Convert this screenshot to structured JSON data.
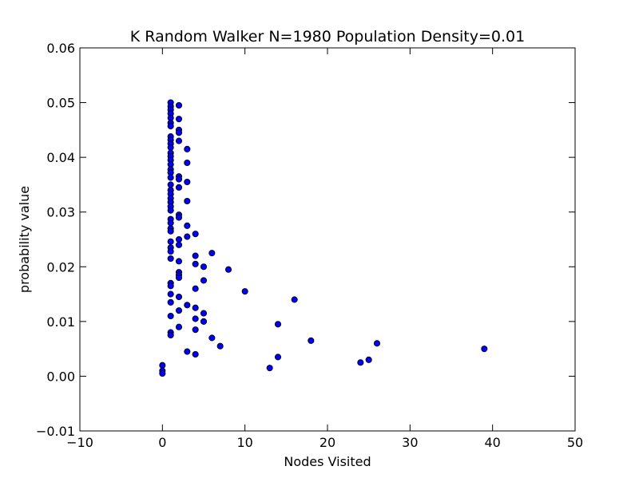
{
  "chart_data": {
    "type": "scatter",
    "title": "K Random Walker N=1980 Population Density=0.01",
    "xlabel": "Nodes Visited",
    "ylabel": "probability value",
    "xlim": [
      -10,
      50
    ],
    "ylim": [
      -0.01,
      0.06
    ],
    "x_ticks": [
      -10,
      0,
      10,
      20,
      30,
      40,
      50
    ],
    "x_tick_labels": [
      "−10",
      "0",
      "10",
      "20",
      "30",
      "40",
      "50"
    ],
    "y_ticks": [
      -0.01,
      0.0,
      0.01,
      0.02,
      0.03,
      0.04,
      0.05,
      0.06
    ],
    "y_tick_labels": [
      "−0.01",
      "0.00",
      "0.01",
      "0.02",
      "0.03",
      "0.04",
      "0.05",
      "0.06"
    ],
    "grid": false,
    "marker_color": "#0000ff",
    "marker_edge_color": "#000000",
    "points": [
      {
        "x": 0,
        "y": 0.002
      },
      {
        "x": 0,
        "y": 0.001
      },
      {
        "x": 0,
        "y": 0.0005
      },
      {
        "x": 1,
        "y": 0.05
      },
      {
        "x": 1,
        "y": 0.0493
      },
      {
        "x": 1,
        "y": 0.0487
      },
      {
        "x": 1,
        "y": 0.048
      },
      {
        "x": 1,
        "y": 0.0472
      },
      {
        "x": 1,
        "y": 0.0463
      },
      {
        "x": 1,
        "y": 0.0457
      },
      {
        "x": 1,
        "y": 0.0438
      },
      {
        "x": 1,
        "y": 0.0432
      },
      {
        "x": 1,
        "y": 0.0425
      },
      {
        "x": 1,
        "y": 0.0418
      },
      {
        "x": 1,
        "y": 0.0408
      },
      {
        "x": 1,
        "y": 0.0402
      },
      {
        "x": 1,
        "y": 0.0395
      },
      {
        "x": 1,
        "y": 0.0387
      },
      {
        "x": 1,
        "y": 0.0378
      },
      {
        "x": 1,
        "y": 0.0372
      },
      {
        "x": 1,
        "y": 0.0363
      },
      {
        "x": 1,
        "y": 0.035
      },
      {
        "x": 1,
        "y": 0.034
      },
      {
        "x": 1,
        "y": 0.0333
      },
      {
        "x": 1,
        "y": 0.0325
      },
      {
        "x": 1,
        "y": 0.0318
      },
      {
        "x": 1,
        "y": 0.031
      },
      {
        "x": 1,
        "y": 0.0303
      },
      {
        "x": 1,
        "y": 0.0287
      },
      {
        "x": 1,
        "y": 0.028
      },
      {
        "x": 1,
        "y": 0.027
      },
      {
        "x": 1,
        "y": 0.0265
      },
      {
        "x": 1,
        "y": 0.0246
      },
      {
        "x": 1,
        "y": 0.0235
      },
      {
        "x": 1,
        "y": 0.0228
      },
      {
        "x": 1,
        "y": 0.0215
      },
      {
        "x": 1,
        "y": 0.017
      },
      {
        "x": 1,
        "y": 0.0165
      },
      {
        "x": 1,
        "y": 0.015
      },
      {
        "x": 1,
        "y": 0.0135
      },
      {
        "x": 1,
        "y": 0.011
      },
      {
        "x": 1,
        "y": 0.008
      },
      {
        "x": 1,
        "y": 0.0075
      },
      {
        "x": 2,
        "y": 0.0495
      },
      {
        "x": 2,
        "y": 0.047
      },
      {
        "x": 2,
        "y": 0.045
      },
      {
        "x": 2,
        "y": 0.0445
      },
      {
        "x": 2,
        "y": 0.043
      },
      {
        "x": 2,
        "y": 0.0365
      },
      {
        "x": 2,
        "y": 0.036
      },
      {
        "x": 2,
        "y": 0.0345
      },
      {
        "x": 2,
        "y": 0.0295
      },
      {
        "x": 2,
        "y": 0.029
      },
      {
        "x": 2,
        "y": 0.025
      },
      {
        "x": 2,
        "y": 0.024
      },
      {
        "x": 2,
        "y": 0.021
      },
      {
        "x": 2,
        "y": 0.019
      },
      {
        "x": 2,
        "y": 0.0185
      },
      {
        "x": 2,
        "y": 0.018
      },
      {
        "x": 2,
        "y": 0.0145
      },
      {
        "x": 2,
        "y": 0.012
      },
      {
        "x": 2,
        "y": 0.009
      },
      {
        "x": 3,
        "y": 0.0415
      },
      {
        "x": 3,
        "y": 0.039
      },
      {
        "x": 3,
        "y": 0.0355
      },
      {
        "x": 3,
        "y": 0.032
      },
      {
        "x": 3,
        "y": 0.0275
      },
      {
        "x": 3,
        "y": 0.0255
      },
      {
        "x": 3,
        "y": 0.013
      },
      {
        "x": 3,
        "y": 0.0045
      },
      {
        "x": 4,
        "y": 0.026
      },
      {
        "x": 4,
        "y": 0.022
      },
      {
        "x": 4,
        "y": 0.0205
      },
      {
        "x": 4,
        "y": 0.016
      },
      {
        "x": 4,
        "y": 0.0125
      },
      {
        "x": 4,
        "y": 0.0105
      },
      {
        "x": 4,
        "y": 0.0085
      },
      {
        "x": 4,
        "y": 0.004
      },
      {
        "x": 5,
        "y": 0.02
      },
      {
        "x": 5,
        "y": 0.0175
      },
      {
        "x": 5,
        "y": 0.0115
      },
      {
        "x": 5,
        "y": 0.01
      },
      {
        "x": 6,
        "y": 0.0225
      },
      {
        "x": 6,
        "y": 0.007
      },
      {
        "x": 7,
        "y": 0.0055
      },
      {
        "x": 8,
        "y": 0.0195
      },
      {
        "x": 10,
        "y": 0.0155
      },
      {
        "x": 13,
        "y": 0.0015
      },
      {
        "x": 14,
        "y": 0.0095
      },
      {
        "x": 14,
        "y": 0.0035
      },
      {
        "x": 16,
        "y": 0.014
      },
      {
        "x": 18,
        "y": 0.0065
      },
      {
        "x": 24,
        "y": 0.0025
      },
      {
        "x": 25,
        "y": 0.003
      },
      {
        "x": 26,
        "y": 0.006
      },
      {
        "x": 39,
        "y": 0.005
      }
    ]
  }
}
